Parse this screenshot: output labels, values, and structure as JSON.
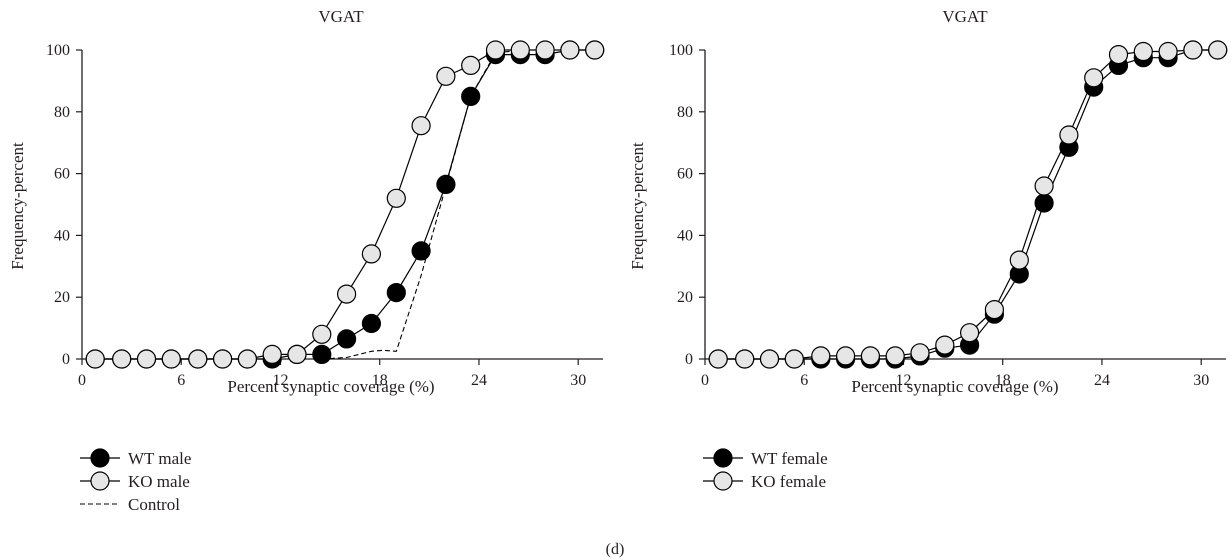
{
  "figure": {
    "panel_label": "(d)"
  },
  "chart_data": [
    {
      "type": "line",
      "title": "VGAT",
      "xlabel": "Percent synaptic coverage (%)",
      "ylabel": "Frequency-percent",
      "xlim": [
        0,
        31.5
      ],
      "ylim": [
        0,
        100
      ],
      "xticks": [
        0,
        6,
        12,
        18,
        24,
        30
      ],
      "yticks": [
        0,
        20,
        40,
        60,
        80,
        100
      ],
      "grid": false,
      "legend_position": "bottom-left",
      "series": [
        {
          "name": "WT male",
          "style": "line-filled-marker",
          "marker_fill": "#000000",
          "x": [
            0.8,
            2.4,
            3.9,
            5.4,
            7.0,
            8.5,
            10.0,
            11.5,
            13.0,
            14.5,
            16.0,
            17.5,
            19.0,
            20.5,
            22.0,
            23.5,
            25.0,
            26.5,
            28.0,
            29.5,
            31.0
          ],
          "y": [
            0,
            0,
            0,
            0,
            0,
            0,
            0,
            0,
            1.5,
            1.5,
            6.5,
            11.5,
            21.5,
            35,
            56.5,
            85,
            98.5,
            98.5,
            98.5,
            100,
            100
          ]
        },
        {
          "name": "KO male",
          "style": "line-open-marker",
          "marker_fill": "#e6e6e6",
          "x": [
            0.8,
            2.4,
            3.9,
            5.4,
            7.0,
            8.5,
            10.0,
            11.5,
            13.0,
            14.5,
            16.0,
            17.5,
            19.0,
            20.5,
            22.0,
            23.5,
            25.0,
            26.5,
            28.0,
            29.5,
            31.0
          ],
          "y": [
            0,
            0,
            0,
            0,
            0,
            0,
            0,
            1.5,
            1.5,
            8,
            21,
            34,
            52,
            75.5,
            91.5,
            95,
            100,
            100,
            100,
            100,
            100
          ]
        },
        {
          "name": "Control",
          "style": "dashed",
          "x": [
            14.5,
            16.0,
            17.5,
            18.2,
            19.0,
            20.5,
            22.0,
            23.5,
            25.0,
            26.5,
            28.0,
            29.5,
            31.0
          ],
          "y": [
            0,
            0.5,
            2.5,
            2.8,
            2.5,
            27,
            56,
            85,
            99,
            100,
            100,
            100,
            100
          ]
        }
      ]
    },
    {
      "type": "line",
      "title": "VGAT",
      "xlabel": "Percent synaptic coverage (%)",
      "ylabel": "Frequency-percent",
      "xlim": [
        0,
        31.5
      ],
      "ylim": [
        0,
        100
      ],
      "xticks": [
        0,
        6,
        12,
        18,
        24,
        30
      ],
      "yticks": [
        0,
        20,
        40,
        60,
        80,
        100
      ],
      "grid": false,
      "legend_position": "bottom-left",
      "series": [
        {
          "name": "WT female",
          "style": "line-filled-marker",
          "marker_fill": "#000000",
          "x": [
            0.8,
            2.4,
            3.9,
            5.4,
            7.0,
            8.5,
            10.0,
            11.5,
            13.0,
            14.5,
            16.0,
            17.5,
            19.0,
            20.5,
            22.0,
            23.5,
            25.0,
            26.5,
            28.0,
            29.5,
            31.0
          ],
          "y": [
            0,
            0,
            0,
            0,
            0,
            0,
            0,
            0,
            1,
            3.5,
            4.5,
            14.5,
            27.5,
            50.5,
            68.5,
            88,
            95,
            97.5,
            97.5,
            100,
            100
          ]
        },
        {
          "name": "KO female",
          "style": "line-open-marker",
          "marker_fill": "#e6e6e6",
          "x": [
            0.8,
            2.4,
            3.9,
            5.4,
            7.0,
            8.5,
            10.0,
            11.5,
            13.0,
            14.5,
            16.0,
            17.5,
            19.0,
            20.5,
            22.0,
            23.5,
            25.0,
            26.5,
            28.0,
            29.5,
            31.0
          ],
          "y": [
            0,
            0,
            0,
            0,
            1,
            1,
            1,
            1,
            2,
            4.5,
            8.5,
            16,
            32,
            56,
            72.5,
            91,
            98.5,
            99.5,
            99.5,
            100,
            100
          ]
        }
      ]
    }
  ]
}
